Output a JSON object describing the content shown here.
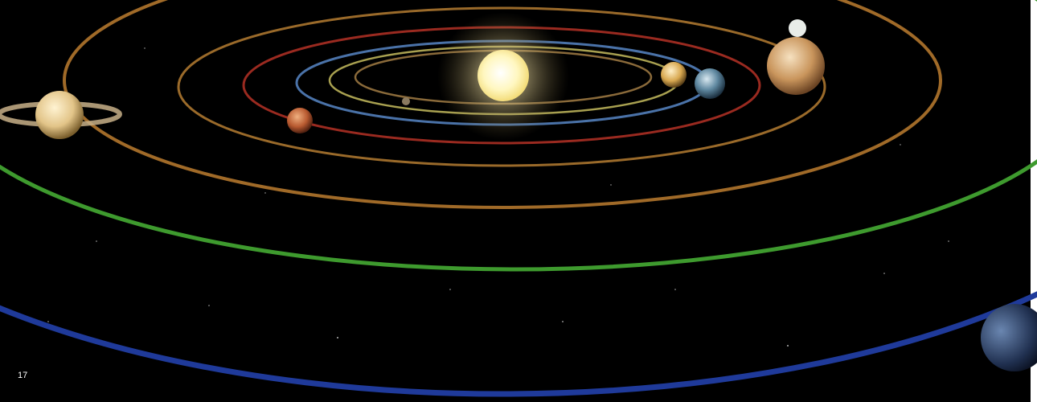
{
  "slide": {
    "page_number": "17"
  }
}
